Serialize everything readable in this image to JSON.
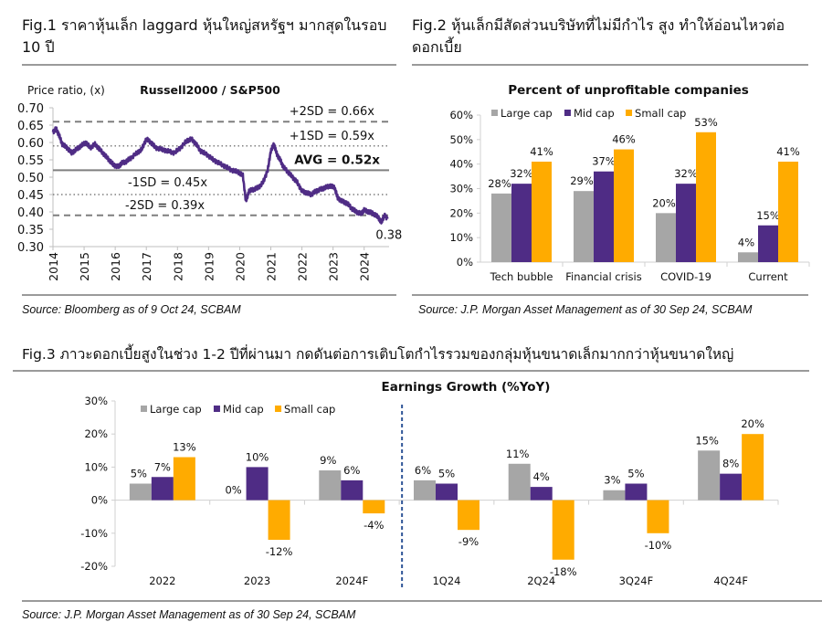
{
  "fig1": {
    "title_line1": "Fig.1 ราคาหุ้นเล็ก laggard หุ้นใหญ่สหรัฐฯ มากสุดในรอบ",
    "title_line2": "10 ปี",
    "source": "Source: Bloomberg as of 9 Oct 24, SCBAM"
  },
  "fig2": {
    "title_line1": "Fig.2 หุ้นเล็กมีสัดส่วนบริษัทที่ไม่มีกำไร สูง ทำให้อ่อนไหวต่อ",
    "title_line2": "ดอกเบี้ย",
    "source": "Source: J.P. Morgan Asset Management as of 30 Sep 24, SCBAM"
  },
  "fig3": {
    "title": "Fig.3 ภาวะดอกเบี้ยสูงในช่วง 1-2 ปีที่ผ่านมา กดดันต่อการเติบโตกำไรรวมของกลุ่มหุ้นขนาดเล็กมากกว่าหุ้นขนาดใหญ่",
    "source": "Source: J.P. Morgan Asset Management as of 30 Sep 24, SCBAM"
  },
  "colors": {
    "large_cap": "#a6a6a6",
    "mid_cap": "#4f2c85",
    "small_cap": "#ffab00",
    "line": "#4f2c85",
    "ref_line": "#7f7f7f",
    "divider": "#2f5597"
  },
  "chart_data": [
    {
      "type": "line",
      "title": "Russell2000 / S&P500",
      "ylabel": "Price ratio, (x)",
      "xlabel": "",
      "ylim": [
        0.3,
        0.7
      ],
      "yticks": [
        "0.70",
        "0.65",
        "0.60",
        "0.55",
        "0.50",
        "0.45",
        "0.40",
        "0.35",
        "0.30"
      ],
      "ytick_values": [
        0.7,
        0.65,
        0.6,
        0.55,
        0.5,
        0.45,
        0.4,
        0.35,
        0.3
      ],
      "xticks": [
        "2014",
        "2015",
        "2016",
        "2017",
        "2018",
        "2019",
        "2020",
        "2021",
        "2022",
        "2023",
        "2024"
      ],
      "xlim": [
        2014.0,
        2024.8
      ],
      "series": [
        {
          "name": "Russell2000 / S&P500",
          "x": [
            2014.0,
            2014.1,
            2014.2,
            2014.3,
            2014.45,
            2014.6,
            2014.75,
            2014.9,
            2015.05,
            2015.2,
            2015.35,
            2015.5,
            2015.65,
            2015.8,
            2015.95,
            2016.1,
            2016.2,
            2016.35,
            2016.5,
            2016.7,
            2016.85,
            2017.0,
            2017.15,
            2017.3,
            2017.5,
            2017.7,
            2017.9,
            2018.1,
            2018.3,
            2018.45,
            2018.6,
            2018.75,
            2018.95,
            2019.15,
            2019.35,
            2019.55,
            2019.75,
            2019.95,
            2020.1,
            2020.2,
            2020.3,
            2020.45,
            2020.6,
            2020.75,
            2020.9,
            2021.0,
            2021.1,
            2021.2,
            2021.3,
            2021.4,
            2021.55,
            2021.7,
            2021.85,
            2022.0,
            2022.15,
            2022.3,
            2022.45,
            2022.6,
            2022.75,
            2022.9,
            2023.05,
            2023.15,
            2023.3,
            2023.45,
            2023.6,
            2023.75,
            2023.9,
            2024.0,
            2024.15,
            2024.3,
            2024.45,
            2024.55,
            2024.65,
            2024.75
          ],
          "y": [
            0.63,
            0.64,
            0.62,
            0.595,
            0.585,
            0.57,
            0.58,
            0.59,
            0.6,
            0.585,
            0.595,
            0.58,
            0.565,
            0.55,
            0.535,
            0.53,
            0.54,
            0.545,
            0.555,
            0.57,
            0.58,
            0.61,
            0.6,
            0.585,
            0.58,
            0.575,
            0.57,
            0.585,
            0.605,
            0.61,
            0.595,
            0.575,
            0.565,
            0.55,
            0.54,
            0.53,
            0.52,
            0.515,
            0.505,
            0.43,
            0.46,
            0.465,
            0.47,
            0.485,
            0.52,
            0.575,
            0.595,
            0.565,
            0.55,
            0.53,
            0.515,
            0.5,
            0.485,
            0.46,
            0.455,
            0.45,
            0.46,
            0.465,
            0.47,
            0.475,
            0.47,
            0.44,
            0.43,
            0.425,
            0.41,
            0.4,
            0.395,
            0.405,
            0.4,
            0.395,
            0.385,
            0.37,
            0.39,
            0.38
          ]
        }
      ],
      "reference_lines": [
        {
          "label": "+2SD = 0.66x",
          "value": 0.66,
          "style": "dashed"
        },
        {
          "label": "+1SD = 0.59x",
          "value": 0.59,
          "style": "dotted"
        },
        {
          "label": "AVG = 0.52x",
          "value": 0.52,
          "style": "solid"
        },
        {
          "label": "-1SD = 0.45x",
          "value": 0.45,
          "style": "dotted"
        },
        {
          "label": "-2SD = 0.39x",
          "value": 0.39,
          "style": "dashed"
        }
      ],
      "annotations": [
        {
          "text": "0.38",
          "x": 2024.75,
          "y": 0.38
        }
      ],
      "grid": false,
      "legend": "none"
    },
    {
      "type": "bar",
      "title": "Percent of unprofitable companies",
      "xlabel": "",
      "ylabel": "",
      "ylim": [
        0,
        60
      ],
      "yticks": [
        "60%",
        "50%",
        "40%",
        "30%",
        "20%",
        "10%",
        "0%"
      ],
      "ytick_values": [
        60,
        50,
        40,
        30,
        20,
        10,
        0
      ],
      "categories": [
        "Tech bubble",
        "Financial crisis",
        "COVID-19",
        "Current"
      ],
      "series": [
        {
          "name": "Large cap",
          "values": [
            28,
            29,
            20,
            4
          ],
          "labels": [
            "28%",
            "29%",
            "20%",
            "4%"
          ]
        },
        {
          "name": "Mid cap",
          "values": [
            32,
            37,
            32,
            15
          ],
          "labels": [
            "32%",
            "37%",
            "32%",
            "15%"
          ]
        },
        {
          "name": "Small cap",
          "values": [
            41,
            46,
            53,
            41
          ],
          "labels": [
            "41%",
            "46%",
            "53%",
            "41%"
          ]
        }
      ],
      "grid": false,
      "legend": "top-left"
    },
    {
      "type": "bar",
      "title": "Earnings Growth (%YoY)",
      "xlabel": "",
      "ylabel": "",
      "ylim": [
        -20,
        30
      ],
      "yticks": [
        "30%",
        "20%",
        "10%",
        "0%",
        "-10%",
        "-20%"
      ],
      "ytick_values": [
        30,
        20,
        10,
        0,
        -10,
        -20
      ],
      "categories": [
        "2022",
        "2023",
        "2024F",
        "1Q24",
        "2Q24",
        "3Q24F",
        "4Q24F"
      ],
      "series": [
        {
          "name": "Large cap",
          "values": [
            5,
            0,
            9,
            6,
            11,
            3,
            15
          ],
          "labels": [
            "5%",
            "0%",
            "9%",
            "6%",
            "11%",
            "3%",
            "15%"
          ]
        },
        {
          "name": "Mid cap",
          "values": [
            7,
            10,
            6,
            5,
            4,
            5,
            8
          ],
          "labels": [
            "7%",
            "10%",
            "6%",
            "5%",
            "4%",
            "5%",
            "8%"
          ]
        },
        {
          "name": "Small cap",
          "values": [
            13,
            -12,
            -4,
            -9,
            -18,
            -10,
            20
          ],
          "labels": [
            "13%",
            "-12%",
            "-4%",
            "-9%",
            "-18%",
            "-10%",
            "20%"
          ]
        }
      ],
      "divider_after_category": "2024F",
      "grid": false,
      "legend": "top-left"
    }
  ]
}
